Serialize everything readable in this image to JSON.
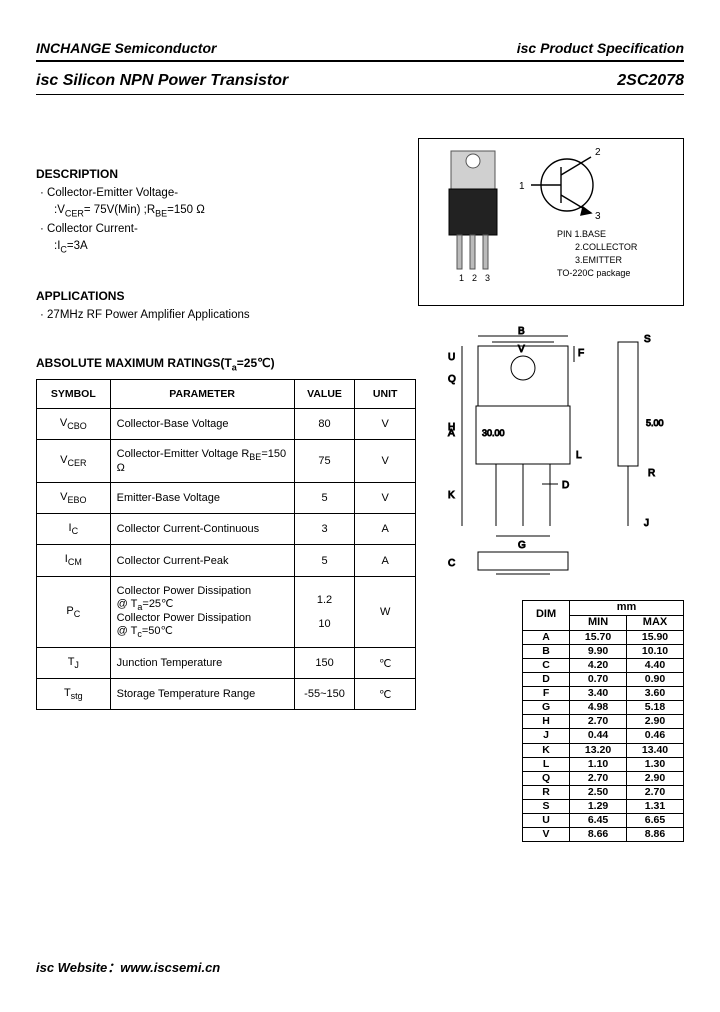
{
  "header": {
    "left": "INCHANGE Semiconductor",
    "right": "isc Product Specification"
  },
  "title": {
    "left": "isc Silicon NPN Power Transistor",
    "right": "2SC2078"
  },
  "description": {
    "heading": "DESCRIPTION",
    "line1": "· Collector-Emitter Voltage-",
    "line2": ":VCER= 75V(Min) ;RBE=150 Ω",
    "line3": "· Collector Current-",
    "line4": ":IC=3A"
  },
  "applications": {
    "heading": "APPLICATIONS",
    "line1": "· 27MHz RF Power Amplifier Applications"
  },
  "ratings": {
    "heading": "ABSOLUTE MAXIMUM RATINGS(Ta=25℃)",
    "columns": [
      "SYMBOL",
      "PARAMETER",
      "VALUE",
      "UNIT"
    ],
    "rows": [
      {
        "sym": "VCBO",
        "param": "Collector-Base Voltage",
        "val": "80",
        "unit": "V"
      },
      {
        "sym": "VCER",
        "param": "Collector-Emitter Voltage RBE=150 Ω",
        "val": "75",
        "unit": "V"
      },
      {
        "sym": "VEBO",
        "param": "Emitter-Base Voltage",
        "val": "5",
        "unit": "V"
      },
      {
        "sym": "IC",
        "param": "Collector Current-Continuous",
        "val": "3",
        "unit": "A"
      },
      {
        "sym": "ICM",
        "param": "Collector Current-Peak",
        "val": "5",
        "unit": "A"
      },
      {
        "sym": "PC",
        "param": "Collector Power Dissipation\n@ Ta=25℃\nCollector Power Dissipation\n@ Tc=50℃",
        "val": "1.2\n\n10",
        "unit": "W"
      },
      {
        "sym": "TJ",
        "param": "Junction Temperature",
        "val": "150",
        "unit": "℃"
      },
      {
        "sym": "Tstg",
        "param": "Storage Temperature Range",
        "val": "-55~150",
        "unit": "℃"
      }
    ]
  },
  "package_box": {
    "pins": "1  2  3",
    "symbol_labels": {
      "p1": "1",
      "p2": "2",
      "p3": "3"
    },
    "legend": [
      "PIN  1.BASE",
      "2.COLLECTOR",
      "3.EMITTER",
      "TO-220C package"
    ]
  },
  "mech_drawing": {
    "letters": [
      "A",
      "B",
      "V",
      "S",
      "U",
      "Q",
      "F",
      "H",
      "L",
      "K",
      "D",
      "G",
      "J",
      "R",
      "C"
    ],
    "angle": "30.00",
    "dim": "5.00"
  },
  "dimensions": {
    "header": [
      "DIM",
      "MIN",
      "MAX"
    ],
    "unit": "mm",
    "rows": [
      [
        "A",
        "15.70",
        "15.90"
      ],
      [
        "B",
        "9.90",
        "10.10"
      ],
      [
        "C",
        "4.20",
        "4.40"
      ],
      [
        "D",
        "0.70",
        "0.90"
      ],
      [
        "F",
        "3.40",
        "3.60"
      ],
      [
        "G",
        "4.98",
        "5.18"
      ],
      [
        "H",
        "2.70",
        "2.90"
      ],
      [
        "J",
        "0.44",
        "0.46"
      ],
      [
        "K",
        "13.20",
        "13.40"
      ],
      [
        "L",
        "1.10",
        "1.30"
      ],
      [
        "Q",
        "2.70",
        "2.90"
      ],
      [
        "R",
        "2.50",
        "2.70"
      ],
      [
        "S",
        "1.29",
        "1.31"
      ],
      [
        "U",
        "6.45",
        "6.65"
      ],
      [
        "V",
        "8.66",
        "8.86"
      ]
    ]
  },
  "footer": "isc Website：www.iscsemi.cn"
}
